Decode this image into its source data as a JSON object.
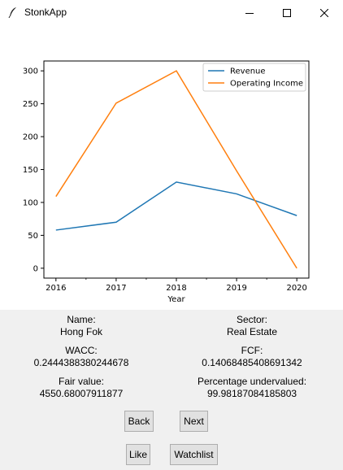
{
  "window": {
    "title": "StonkApp"
  },
  "chart_data": {
    "type": "line",
    "x": [
      2016,
      2017,
      2018,
      2019,
      2020
    ],
    "series": [
      {
        "name": "Revenue",
        "values": [
          58,
          70,
          131,
          113,
          80
        ],
        "color": "#1f77b4"
      },
      {
        "name": "Operating Income",
        "values": [
          109,
          251,
          300,
          148,
          0
        ],
        "color": "#ff7f0e"
      }
    ],
    "xlabel": "Year",
    "ylabel": "",
    "title": "",
    "xticks": [
      "2016",
      "2017",
      "2018",
      "2019",
      "2020"
    ],
    "yticks": [
      "0",
      "50",
      "100",
      "150",
      "200",
      "250",
      "300"
    ],
    "xlim": [
      2015.8,
      2020.2
    ],
    "ylim": [
      -15,
      315
    ],
    "legend_position": "top-right",
    "grid": false
  },
  "info": {
    "name_label": "Name:",
    "name_value": "Hong Fok",
    "sector_label": "Sector:",
    "sector_value": "Real Estate",
    "wacc_label": "WACC:",
    "wacc_value": "0.2444388380244678",
    "fcf_label": "FCF:",
    "fcf_value": "0.14068485408691342",
    "fair_label": "Fair value:",
    "fair_value": "4550.68007911877",
    "underval_label": "Percentage undervalued:",
    "underval_value": "99.98187084185803"
  },
  "buttons": {
    "back": "Back",
    "next": "Next",
    "like": "Like",
    "watchlist": "Watchlist"
  }
}
